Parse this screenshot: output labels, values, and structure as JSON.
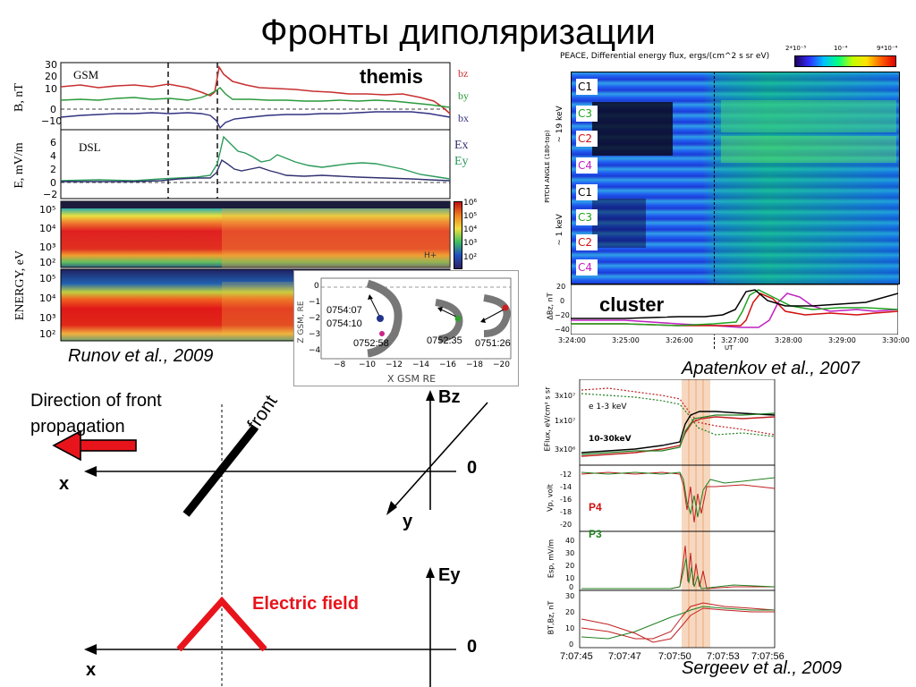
{
  "title": "Фронты диполяризации",
  "runov": {
    "caption": "Runov et al., 2009",
    "label": "themis",
    "panel1": {
      "system": "GSM",
      "ylabel": "B, nT",
      "legend": [
        "bz",
        "by",
        "bx"
      ],
      "yticks": [
        "30",
        "20",
        "10",
        "0",
        "−10"
      ]
    },
    "panel2": {
      "system": "DSL",
      "ylabel": "E, mV/m",
      "legend": [
        "Ex",
        "Ey"
      ],
      "yticks": [
        "6",
        "4",
        "2",
        "0",
        "−2"
      ]
    },
    "panel3": {
      "ylabel": "ENERGY, eV",
      "yticks": [
        "10⁵",
        "10⁴",
        "10³",
        "10²"
      ],
      "colorbar": [
        "10⁶",
        "10⁵",
        "10⁴",
        "10³",
        "10²"
      ],
      "note": "H+"
    },
    "panel4": {
      "yticks": [
        "10⁵",
        "10⁴",
        "10³",
        "10²"
      ]
    },
    "inset": {
      "zlabel": "Z GSM, RE",
      "xlabel": "X GSM RE",
      "times": [
        "0754:07",
        "0754:10",
        "0752:58",
        "0752:35",
        "0751:26"
      ],
      "xticks": [
        "−8",
        "−10",
        "−12",
        "−14",
        "−16",
        "−18",
        "−20"
      ],
      "yticks": [
        "0",
        "−1",
        "−2",
        "−3",
        "−4"
      ]
    }
  },
  "apatenkov": {
    "caption": "Apatenkov et al., 2007",
    "header": "PEACE, Differential energy flux, ergs/(cm^2 s sr eV)",
    "colorbar_labels": [
      "2*10⁻⁵",
      "10⁻⁴",
      "9*10⁻⁴"
    ],
    "ylabel_top": "PITCH ANGLE (180-top)",
    "energy_top": "~ 19 keV",
    "energy_bottom": "~ 1 keV",
    "channels": [
      "C1",
      "C3",
      "C2",
      "C4",
      "C1",
      "C3",
      "C2",
      "C4"
    ],
    "channel_colors": [
      "#000000",
      "#1fa31f",
      "#d01010",
      "#c020c0",
      "#000000",
      "#1fa31f",
      "#d01010",
      "#c020c0"
    ],
    "bz_label": "cluster",
    "bz_ylabel": "ΔBz, nT",
    "bz_yticks": [
      "20",
      "0",
      "−20",
      "−40"
    ],
    "xticks": [
      "3:24:00",
      "3:25:00",
      "3:26:00",
      "3:27:00",
      "3:28:00",
      "3:29:00",
      "3:30:00"
    ],
    "xunit": "UT"
  },
  "sergeev": {
    "caption": "Sergeev et al., 2009",
    "eflux_label": "EFlux, eV/cm² s sr",
    "eflux_ticks": [
      "3x10⁷",
      "1x10⁷",
      "3x10⁶"
    ],
    "energy_low": "e 1-3 keV",
    "energy_high": "10-30keV",
    "vp_label": "Vp, volt",
    "vp_ticks": [
      "-12",
      "-14",
      "-16",
      "-18",
      "-20"
    ],
    "probe4": "P4",
    "probe3": "P3",
    "esp_label": "Esp, mV/m",
    "esp_ticks": [
      "40",
      "30",
      "20",
      "10",
      "0"
    ],
    "bt_label": "BT,Bz, nT",
    "bt_ticks": [
      "30",
      "20",
      "10",
      "0"
    ],
    "xticks": [
      "7:07:45",
      "7:07:47",
      "7:07:50",
      "7:07:53",
      "7:07:56"
    ]
  },
  "schematic": {
    "direction_label": "Direction of front propagation",
    "front_label": "front",
    "bz_axis": "Bz",
    "ey_axis": "Ey",
    "x_axis": "x",
    "x_axis2": "x",
    "y_axis": "y",
    "zero": "0",
    "zero2": "0",
    "efield_label": "Electric field",
    "colors": {
      "arrow": "#e8141c",
      "efield": "#e8141c",
      "front": "#000000"
    }
  }
}
